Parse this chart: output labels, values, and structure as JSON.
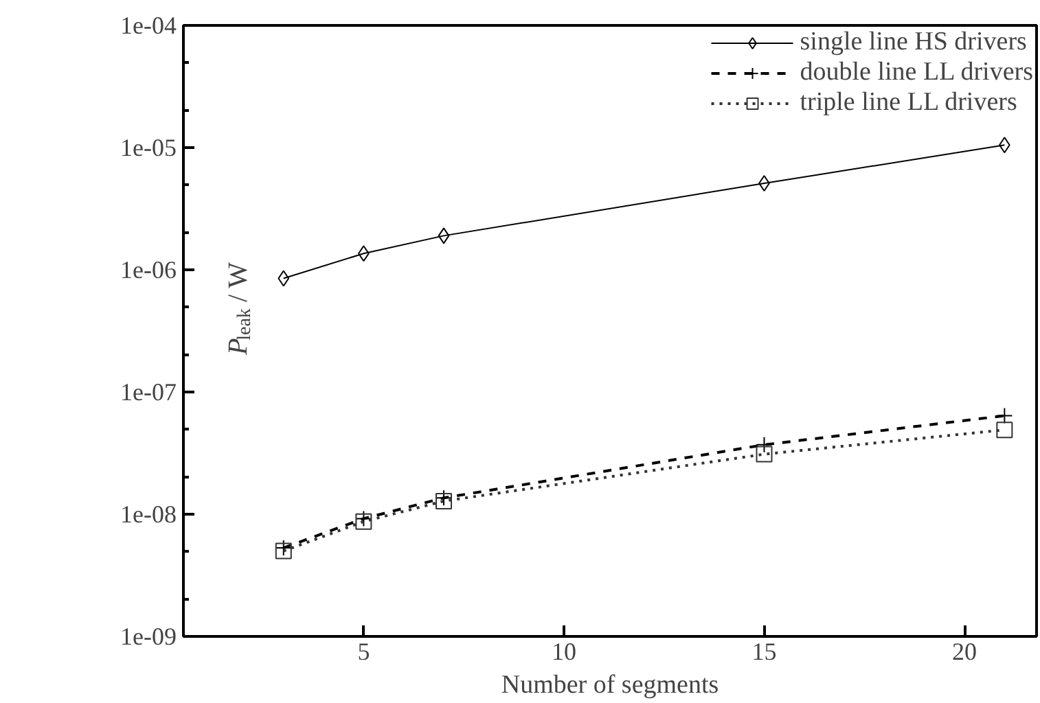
{
  "chart_data": {
    "type": "line",
    "xlabel": "Number of segments",
    "ylabel": "P$_{leak}$/ W",
    "x": [
      3,
      5,
      7,
      15,
      21
    ],
    "series": [
      {
        "name": "single line HS drivers",
        "color": "#000000",
        "marker": "diamond",
        "line_style": "solid",
        "values": [
          8.5e-07,
          1.36e-06,
          1.9e-06,
          5.1e-06,
          1.05e-05
        ]
      },
      {
        "name": "double line LL drivers",
        "color": "#000000",
        "marker": "cross",
        "line_style": "dashed",
        "values": [
          5.3e-09,
          9.2e-09,
          1.36e-08,
          3.7e-08,
          6.4e-08
        ]
      },
      {
        "name": "triple line LL drivers",
        "color": "#333333",
        "marker": "square",
        "line_style": "dotted",
        "values": [
          5e-09,
          8.7e-09,
          1.28e-08,
          3.1e-08,
          4.9e-08
        ]
      }
    ],
    "xlim": [
      0.5,
      21.8
    ],
    "xticks": [
      5,
      10,
      15,
      20
    ],
    "ylim": [
      1e-09,
      0.0001
    ],
    "yticks": [
      {
        "value": 1e-09,
        "label": "1e-09"
      },
      {
        "value": 1e-08,
        "label": "1e-08"
      },
      {
        "value": 1e-07,
        "label": "1e-07"
      },
      {
        "value": 1e-06,
        "label": "1e-06"
      },
      {
        "value": 1e-05,
        "label": "1e-05"
      },
      {
        "value": 0.0001,
        "label": "1e-04"
      }
    ],
    "log": "y",
    "grid": false,
    "legend": "top right"
  }
}
